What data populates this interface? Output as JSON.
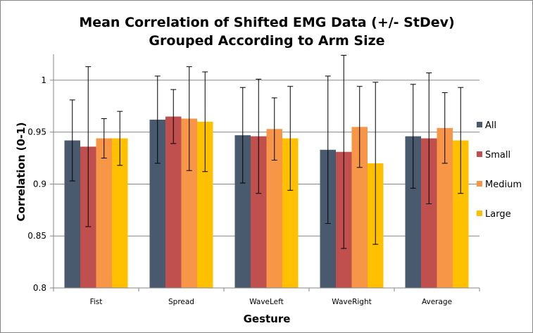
{
  "chart_data": {
    "type": "bar",
    "title": [
      "Mean Correlation of Shifted EMG Data (+/- StDev)",
      "Grouped According to Arm Size"
    ],
    "xlabel": "Gesture",
    "ylabel": "Correlation (0-1)",
    "ylim": [
      0.8,
      1.025
    ],
    "yticks": [
      0.8,
      0.85,
      0.9,
      0.95,
      1
    ],
    "ytick_labels": [
      "0.8",
      "0.85",
      "0.9",
      "0.95",
      "1"
    ],
    "grid": "horizontal",
    "legend_position": "right",
    "categories": [
      "Fist",
      "Spread",
      "WaveLeft",
      "WaveRight",
      "Average"
    ],
    "series": [
      {
        "name": "All",
        "color": "#4a5a6e",
        "values": [
          0.942,
          0.962,
          0.947,
          0.933,
          0.946
        ],
        "error": [
          0.039,
          0.042,
          0.046,
          0.071,
          0.05
        ]
      },
      {
        "name": "Small",
        "color": "#c0504d",
        "values": [
          0.936,
          0.965,
          0.946,
          0.931,
          0.944
        ],
        "error": [
          0.077,
          0.026,
          0.055,
          0.093,
          0.063
        ]
      },
      {
        "name": "Medium",
        "color": "#f79646",
        "values": [
          0.944,
          0.963,
          0.953,
          0.955,
          0.954
        ],
        "error": [
          0.019,
          0.05,
          0.03,
          0.039,
          0.034
        ]
      },
      {
        "name": "Large",
        "color": "#ffc000",
        "values": [
          0.944,
          0.96,
          0.944,
          0.92,
          0.942
        ],
        "error": [
          0.026,
          0.048,
          0.05,
          0.078,
          0.051
        ]
      }
    ]
  }
}
